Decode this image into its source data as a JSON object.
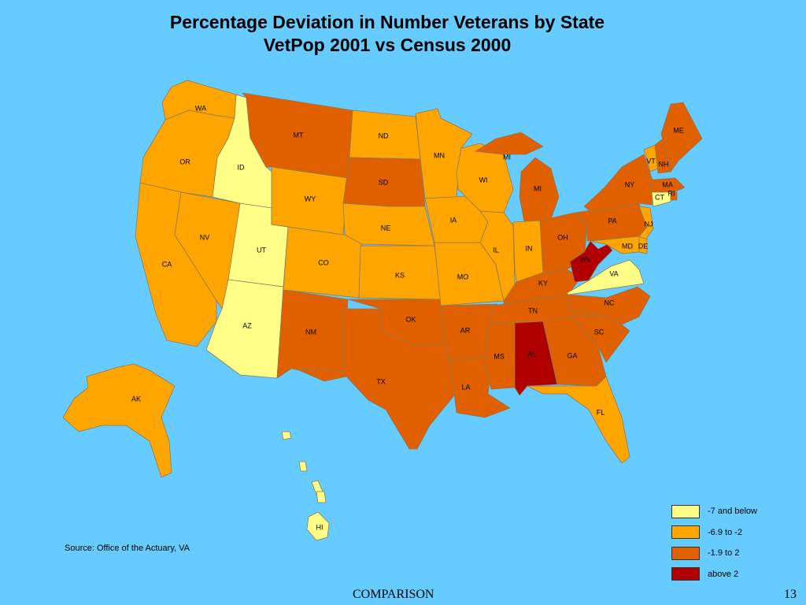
{
  "title": {
    "line1": "Percentage Deviation in Number Veterans by State",
    "line2": "VetPop 2001 vs Census 2000"
  },
  "source": "Source: Office of the Actuary, VA",
  "footer": {
    "label": "COMPARISON",
    "page": "13"
  },
  "colors": {
    "c1": "#ffff88",
    "c2": "#ffa500",
    "c3": "#e06000",
    "c4": "#b00000",
    "background": "#66ccff"
  },
  "legend": [
    {
      "label": "-7 and below",
      "color": "#ffff88"
    },
    {
      "label": "-6.9 to -2",
      "color": "#ffa500"
    },
    {
      "label": "-1.9 to 2",
      "color": "#e06000"
    },
    {
      "label": "above 2",
      "color": "#b00000"
    }
  ],
  "states": [
    {
      "id": "WA",
      "label": "WA",
      "class": 2
    },
    {
      "id": "OR",
      "label": "OR",
      "class": 2
    },
    {
      "id": "CA",
      "label": "CA",
      "class": 2
    },
    {
      "id": "NV",
      "label": "NV",
      "class": 2
    },
    {
      "id": "ID",
      "label": "ID",
      "class": 1
    },
    {
      "id": "UT",
      "label": "UT",
      "class": 1
    },
    {
      "id": "AZ",
      "label": "AZ",
      "class": 1
    },
    {
      "id": "MT",
      "label": "MT",
      "class": 3
    },
    {
      "id": "WY",
      "label": "WY",
      "class": 2
    },
    {
      "id": "CO",
      "label": "CO",
      "class": 2
    },
    {
      "id": "NM",
      "label": "NM",
      "class": 3
    },
    {
      "id": "ND",
      "label": "ND",
      "class": 2
    },
    {
      "id": "SD",
      "label": "SD",
      "class": 3
    },
    {
      "id": "NE",
      "label": "NE",
      "class": 2
    },
    {
      "id": "KS",
      "label": "KS",
      "class": 2
    },
    {
      "id": "OK",
      "label": "OK",
      "class": 3
    },
    {
      "id": "TX",
      "label": "TX",
      "class": 3
    },
    {
      "id": "MN",
      "label": "MN",
      "class": 2
    },
    {
      "id": "IA",
      "label": "IA",
      "class": 2
    },
    {
      "id": "MO",
      "label": "MO",
      "class": 2
    },
    {
      "id": "AR",
      "label": "AR",
      "class": 3
    },
    {
      "id": "LA",
      "label": "LA",
      "class": 3
    },
    {
      "id": "WI",
      "label": "WI",
      "class": 2
    },
    {
      "id": "IL",
      "label": "IL",
      "class": 2
    },
    {
      "id": "MI",
      "label": "MI",
      "class": 3
    },
    {
      "id": "MI2",
      "label": "MI",
      "class": 3
    },
    {
      "id": "IN",
      "label": "IN",
      "class": 2
    },
    {
      "id": "OH",
      "label": "OH",
      "class": 3
    },
    {
      "id": "KY",
      "label": "KY",
      "class": 3
    },
    {
      "id": "TN",
      "label": "TN",
      "class": 3
    },
    {
      "id": "MS",
      "label": "MS",
      "class": 3
    },
    {
      "id": "AL",
      "label": "AL",
      "class": 4
    },
    {
      "id": "GA",
      "label": "GA",
      "class": 3
    },
    {
      "id": "FL",
      "label": "FL",
      "class": 2
    },
    {
      "id": "SC",
      "label": "SC",
      "class": 3
    },
    {
      "id": "NC",
      "label": "NC",
      "class": 3
    },
    {
      "id": "VA",
      "label": "VA",
      "class": 1
    },
    {
      "id": "WV",
      "label": "WV",
      "class": 4
    },
    {
      "id": "PA",
      "label": "PA",
      "class": 3
    },
    {
      "id": "NY",
      "label": "NY",
      "class": 3
    },
    {
      "id": "NJ",
      "label": "NJ",
      "class": 2
    },
    {
      "id": "MD",
      "label": "MD",
      "class": 2
    },
    {
      "id": "DE",
      "label": "DE",
      "class": 2
    },
    {
      "id": "VT",
      "label": "VT",
      "class": 2
    },
    {
      "id": "NH",
      "label": "NH",
      "class": 3
    },
    {
      "id": "ME",
      "label": "ME",
      "class": 3
    },
    {
      "id": "MA",
      "label": "MA",
      "class": 3
    },
    {
      "id": "RI",
      "label": "RI",
      "class": 3
    },
    {
      "id": "CT",
      "label": "CT",
      "class": 1
    },
    {
      "id": "AK",
      "label": "AK",
      "class": 2
    },
    {
      "id": "HI",
      "label": "HI",
      "class": 1
    }
  ]
}
